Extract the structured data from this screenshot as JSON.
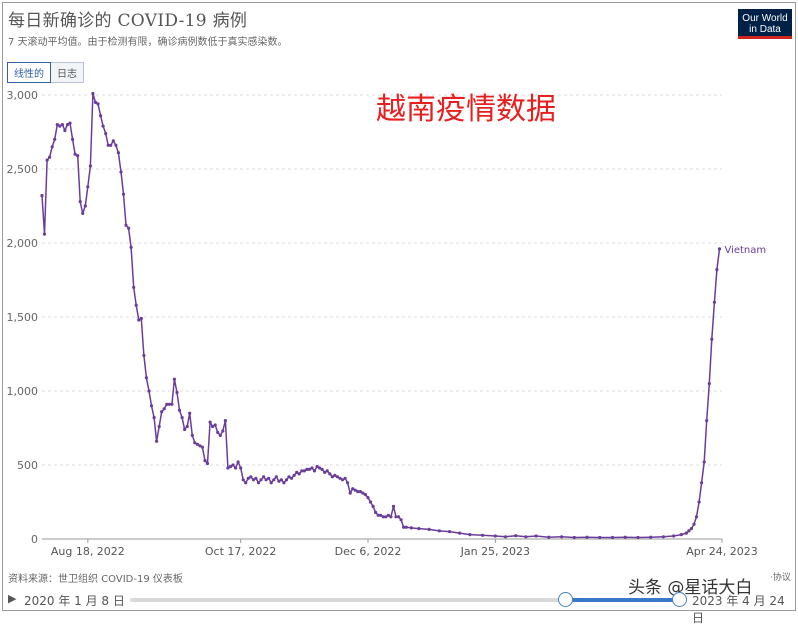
{
  "header": {
    "title": "每日新确诊的 COVID-19 病例",
    "subtitle": "7 天滚动平均值。由于检测有限，确诊病例数低于真实感染数。",
    "logo_line1": "Our World",
    "logo_line2": "in Data"
  },
  "toggles": {
    "linear": "线性的",
    "log": "日志"
  },
  "annotation": "越南疫情数据",
  "footer": {
    "source": "资料来源：世卫组织 COVID-19 仪表板",
    "source_right": "·协议"
  },
  "watermark": "头条 @星话大白",
  "timeline": {
    "start_label": "2020 年 1 月 8 日",
    "end_label": "2023 年 4 月 24 日",
    "play_glyph": "▶"
  },
  "colors": {
    "series": "#6a3d9a",
    "grid": "#dddddd",
    "annotation": "#e62020"
  },
  "chart_data": {
    "type": "line",
    "title": "每日新确诊的 COVID-19 病例",
    "ylim": [
      0,
      3000
    ],
    "yticks": [
      0,
      500,
      1000,
      1500,
      2000,
      2500,
      3000
    ],
    "ytick_labels": [
      "0",
      "500",
      "1,000",
      "1,500",
      "2,000",
      "2,500",
      "3,000"
    ],
    "xlim": [
      "2022-07-31",
      "2023-04-24"
    ],
    "xticks": [
      {
        "date": "2022-08-18",
        "label": "Aug 18, 2022"
      },
      {
        "date": "2022-10-17",
        "label": "Oct 17, 2022"
      },
      {
        "date": "2022-12-06",
        "label": "Dec 6, 2022"
      },
      {
        "date": "2023-01-25",
        "label": "Jan 25, 2023"
      },
      {
        "date": "2023-04-24",
        "label": "Apr 24, 2023"
      }
    ],
    "grid": true,
    "series": [
      {
        "name": "Vietnam",
        "points": [
          [
            "2022-07-31",
            2320
          ],
          [
            "2022-08-01",
            2060
          ],
          [
            "2022-08-02",
            2560
          ],
          [
            "2022-08-03",
            2580
          ],
          [
            "2022-08-04",
            2650
          ],
          [
            "2022-08-05",
            2700
          ],
          [
            "2022-08-06",
            2800
          ],
          [
            "2022-08-07",
            2790
          ],
          [
            "2022-08-08",
            2800
          ],
          [
            "2022-08-09",
            2760
          ],
          [
            "2022-08-10",
            2800
          ],
          [
            "2022-08-11",
            2810
          ],
          [
            "2022-08-12",
            2700
          ],
          [
            "2022-08-13",
            2600
          ],
          [
            "2022-08-14",
            2590
          ],
          [
            "2022-08-15",
            2280
          ],
          [
            "2022-08-16",
            2200
          ],
          [
            "2022-08-17",
            2250
          ],
          [
            "2022-08-18",
            2380
          ],
          [
            "2022-08-19",
            2520
          ],
          [
            "2022-08-20",
            3010
          ],
          [
            "2022-08-21",
            2950
          ],
          [
            "2022-08-22",
            2940
          ],
          [
            "2022-08-23",
            2860
          ],
          [
            "2022-08-24",
            2790
          ],
          [
            "2022-08-25",
            2740
          ],
          [
            "2022-08-26",
            2660
          ],
          [
            "2022-08-27",
            2660
          ],
          [
            "2022-08-28",
            2690
          ],
          [
            "2022-08-29",
            2660
          ],
          [
            "2022-08-30",
            2610
          ],
          [
            "2022-08-31",
            2480
          ],
          [
            "2022-09-01",
            2330
          ],
          [
            "2022-09-02",
            2120
          ],
          [
            "2022-09-03",
            2100
          ],
          [
            "2022-09-04",
            1970
          ],
          [
            "2022-09-05",
            1700
          ],
          [
            "2022-09-06",
            1580
          ],
          [
            "2022-09-07",
            1480
          ],
          [
            "2022-09-08",
            1490
          ],
          [
            "2022-09-09",
            1240
          ],
          [
            "2022-09-10",
            1090
          ],
          [
            "2022-09-11",
            1000
          ],
          [
            "2022-09-12",
            900
          ],
          [
            "2022-09-13",
            820
          ],
          [
            "2022-09-14",
            660
          ],
          [
            "2022-09-15",
            760
          ],
          [
            "2022-09-16",
            860
          ],
          [
            "2022-09-17",
            880
          ],
          [
            "2022-09-18",
            910
          ],
          [
            "2022-09-19",
            910
          ],
          [
            "2022-09-20",
            910
          ],
          [
            "2022-09-21",
            1080
          ],
          [
            "2022-09-22",
            990
          ],
          [
            "2022-09-23",
            870
          ],
          [
            "2022-09-24",
            820
          ],
          [
            "2022-09-25",
            740
          ],
          [
            "2022-09-26",
            760
          ],
          [
            "2022-09-27",
            850
          ],
          [
            "2022-09-28",
            700
          ],
          [
            "2022-09-29",
            650
          ],
          [
            "2022-09-30",
            640
          ],
          [
            "2022-10-01",
            630
          ],
          [
            "2022-10-02",
            620
          ],
          [
            "2022-10-03",
            530
          ],
          [
            "2022-10-04",
            510
          ],
          [
            "2022-10-05",
            790
          ],
          [
            "2022-10-06",
            760
          ],
          [
            "2022-10-07",
            770
          ],
          [
            "2022-10-08",
            720
          ],
          [
            "2022-10-09",
            700
          ],
          [
            "2022-10-10",
            730
          ],
          [
            "2022-10-11",
            800
          ],
          [
            "2022-10-12",
            480
          ],
          [
            "2022-10-13",
            490
          ],
          [
            "2022-10-14",
            500
          ],
          [
            "2022-10-15",
            480
          ],
          [
            "2022-10-16",
            520
          ],
          [
            "2022-10-17",
            480
          ],
          [
            "2022-10-18",
            400
          ],
          [
            "2022-10-19",
            380
          ],
          [
            "2022-10-20",
            410
          ],
          [
            "2022-10-21",
            420
          ],
          [
            "2022-10-22",
            400
          ],
          [
            "2022-10-23",
            410
          ],
          [
            "2022-10-24",
            380
          ],
          [
            "2022-10-25",
            400
          ],
          [
            "2022-10-26",
            420
          ],
          [
            "2022-10-27",
            400
          ],
          [
            "2022-10-28",
            410
          ],
          [
            "2022-10-29",
            380
          ],
          [
            "2022-10-30",
            400
          ],
          [
            "2022-10-31",
            420
          ],
          [
            "2022-11-01",
            390
          ],
          [
            "2022-11-02",
            400
          ],
          [
            "2022-11-03",
            380
          ],
          [
            "2022-11-04",
            400
          ],
          [
            "2022-11-05",
            420
          ],
          [
            "2022-11-06",
            410
          ],
          [
            "2022-11-07",
            430
          ],
          [
            "2022-11-08",
            450
          ],
          [
            "2022-11-09",
            440
          ],
          [
            "2022-11-10",
            460
          ],
          [
            "2022-11-11",
            460
          ],
          [
            "2022-11-12",
            470
          ],
          [
            "2022-11-13",
            470
          ],
          [
            "2022-11-14",
            480
          ],
          [
            "2022-11-15",
            460
          ],
          [
            "2022-11-16",
            490
          ],
          [
            "2022-11-17",
            480
          ],
          [
            "2022-11-18",
            470
          ],
          [
            "2022-11-19",
            450
          ],
          [
            "2022-11-20",
            460
          ],
          [
            "2022-11-21",
            440
          ],
          [
            "2022-11-22",
            420
          ],
          [
            "2022-11-23",
            430
          ],
          [
            "2022-11-24",
            420
          ],
          [
            "2022-11-25",
            410
          ],
          [
            "2022-11-26",
            400
          ],
          [
            "2022-11-27",
            410
          ],
          [
            "2022-11-28",
            380
          ],
          [
            "2022-11-29",
            310
          ],
          [
            "2022-11-30",
            340
          ],
          [
            "2022-12-01",
            330
          ],
          [
            "2022-12-02",
            320
          ],
          [
            "2022-12-03",
            320
          ],
          [
            "2022-12-04",
            310
          ],
          [
            "2022-12-05",
            300
          ],
          [
            "2022-12-06",
            280
          ],
          [
            "2022-12-07",
            250
          ],
          [
            "2022-12-08",
            220
          ],
          [
            "2022-12-09",
            180
          ],
          [
            "2022-12-10",
            160
          ],
          [
            "2022-12-11",
            160
          ],
          [
            "2022-12-12",
            150
          ],
          [
            "2022-12-13",
            150
          ],
          [
            "2022-12-14",
            160
          ],
          [
            "2022-12-15",
            150
          ],
          [
            "2022-12-16",
            220
          ],
          [
            "2022-12-17",
            150
          ],
          [
            "2022-12-18",
            150
          ],
          [
            "2022-12-19",
            130
          ],
          [
            "2022-12-20",
            80
          ],
          [
            "2022-12-21",
            80
          ],
          [
            "2022-12-23",
            75
          ],
          [
            "2022-12-26",
            70
          ],
          [
            "2022-12-30",
            65
          ],
          [
            "2023-01-03",
            55
          ],
          [
            "2023-01-07",
            50
          ],
          [
            "2023-01-11",
            40
          ],
          [
            "2023-01-15",
            30
          ],
          [
            "2023-01-20",
            25
          ],
          [
            "2023-01-25",
            20
          ],
          [
            "2023-01-29",
            15
          ],
          [
            "2023-02-02",
            22
          ],
          [
            "2023-02-06",
            15
          ],
          [
            "2023-02-10",
            20
          ],
          [
            "2023-02-15",
            12
          ],
          [
            "2023-02-20",
            15
          ],
          [
            "2023-02-25",
            10
          ],
          [
            "2023-03-02",
            12
          ],
          [
            "2023-03-07",
            10
          ],
          [
            "2023-03-12",
            10
          ],
          [
            "2023-03-17",
            12
          ],
          [
            "2023-03-22",
            10
          ],
          [
            "2023-03-27",
            12
          ],
          [
            "2023-04-01",
            15
          ],
          [
            "2023-04-05",
            20
          ],
          [
            "2023-04-08",
            30
          ],
          [
            "2023-04-10",
            40
          ],
          [
            "2023-04-11",
            55
          ],
          [
            "2023-04-12",
            70
          ],
          [
            "2023-04-13",
            100
          ],
          [
            "2023-04-14",
            150
          ],
          [
            "2023-04-15",
            250
          ],
          [
            "2023-04-16",
            380
          ],
          [
            "2023-04-17",
            520
          ],
          [
            "2023-04-18",
            800
          ],
          [
            "2023-04-19",
            1050
          ],
          [
            "2023-04-20",
            1350
          ],
          [
            "2023-04-21",
            1600
          ],
          [
            "2023-04-22",
            1820
          ],
          [
            "2023-04-23",
            1960
          ]
        ]
      }
    ]
  }
}
